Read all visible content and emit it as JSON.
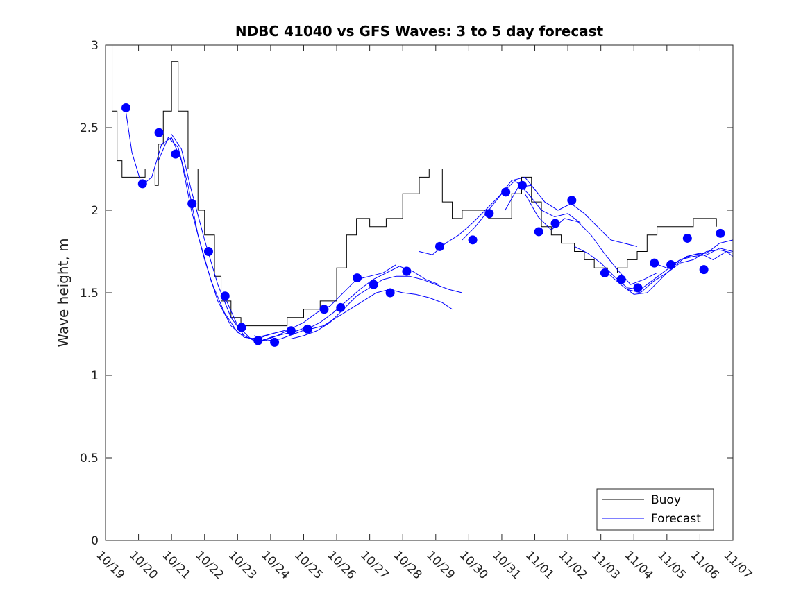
{
  "chart_data": {
    "type": "line",
    "title": "NDBC 41040 vs GFS Waves: 3 to 5 day forecast",
    "xlabel": "",
    "ylabel": "Wave height, m",
    "ylim": [
      0,
      3
    ],
    "xlim": [
      0,
      19
    ],
    "yticks": [
      0,
      0.5,
      1,
      1.5,
      2,
      2.5,
      3
    ],
    "ytick_labels": [
      "0",
      "0.5",
      "1",
      "1.5",
      "2",
      "2.5",
      "3"
    ],
    "xtick_labels": [
      "10/19",
      "10/20",
      "10/21",
      "10/22",
      "10/23",
      "10/24",
      "10/25",
      "10/26",
      "10/27",
      "10/28",
      "10/29",
      "10/30",
      "10/31",
      "11/01",
      "11/02",
      "11/03",
      "11/04",
      "11/05",
      "11/06",
      "11/07"
    ],
    "x_units": "days since 10/19 00:00",
    "legend": {
      "location": "bottom-right",
      "entries": [
        "Buoy",
        "Forecast"
      ]
    },
    "colors": {
      "buoy": "#000000",
      "forecast": "#0000ff",
      "marker": "#0000ff"
    },
    "series": [
      {
        "name": "Buoy",
        "x": [
          0.15,
          0.2,
          0.35,
          0.5,
          0.8,
          1.2,
          1.5,
          1.6,
          1.75,
          2.0,
          2.2,
          2.5,
          2.8,
          3.0,
          3.3,
          3.5,
          3.8,
          4.1,
          4.5,
          5.0,
          5.5,
          6.0,
          6.5,
          7.0,
          7.3,
          7.6,
          8.0,
          8.5,
          9.0,
          9.5,
          9.8,
          10.2,
          10.5,
          10.8,
          11.2,
          11.6,
          12.0,
          12.3,
          12.6,
          12.9,
          13.2,
          13.5,
          13.8,
          14.2,
          14.5,
          14.8,
          15.2,
          15.5,
          15.8,
          16.1,
          16.4,
          16.7,
          17.0,
          17.4,
          17.8,
          18.2,
          18.5
        ],
        "y": [
          3.0,
          2.6,
          2.3,
          2.2,
          2.2,
          2.25,
          2.15,
          2.4,
          2.6,
          2.9,
          2.6,
          2.25,
          2.0,
          1.85,
          1.6,
          1.45,
          1.35,
          1.3,
          1.3,
          1.3,
          1.35,
          1.4,
          1.45,
          1.65,
          1.85,
          1.95,
          1.9,
          1.95,
          2.1,
          2.2,
          2.25,
          2.05,
          1.95,
          2.0,
          2.0,
          1.95,
          1.95,
          2.1,
          2.2,
          2.05,
          1.9,
          1.85,
          1.8,
          1.75,
          1.7,
          1.65,
          1.62,
          1.65,
          1.7,
          1.75,
          1.85,
          1.9,
          1.9,
          1.9,
          1.95,
          1.95,
          1.9
        ]
      },
      {
        "name": "Forecast",
        "segments": [
          {
            "x": [
              0.6,
              0.8,
              1.1,
              1.4
            ],
            "y": [
              2.62,
              2.35,
              2.15,
              2.2
            ]
          },
          {
            "x": [
              1.4,
              1.7,
              2.0,
              2.3,
              2.6,
              3.0,
              3.4,
              3.8,
              4.2,
              4.6,
              5.0,
              5.4
            ],
            "y": [
              2.2,
              2.4,
              2.44,
              2.3,
              2.0,
              1.7,
              1.45,
              1.3,
              1.23,
              1.22,
              1.25,
              1.27
            ]
          },
          {
            "x": [
              1.6,
              1.9,
              2.2,
              2.5,
              2.8,
              3.2,
              3.6,
              4.0,
              4.4,
              4.8,
              5.2,
              5.6
            ],
            "y": [
              2.3,
              2.44,
              2.38,
              2.15,
              1.85,
              1.57,
              1.38,
              1.26,
              1.22,
              1.24,
              1.26,
              1.28
            ]
          },
          {
            "x": [
              2.0,
              2.3,
              2.6,
              3.0,
              3.4,
              3.8,
              4.2,
              4.6,
              5.0,
              5.4,
              5.8,
              6.2
            ],
            "y": [
              2.46,
              2.37,
              2.12,
              1.82,
              1.55,
              1.35,
              1.24,
              1.2,
              1.23,
              1.25,
              1.27,
              1.3
            ]
          },
          {
            "x": [
              3.6,
              4.0,
              4.4,
              4.8,
              5.2,
              5.6,
              6.0,
              6.4,
              6.8,
              7.2,
              7.6,
              8.0,
              8.4,
              8.8
            ],
            "y": [
              1.48,
              1.3,
              1.22,
              1.21,
              1.24,
              1.28,
              1.32,
              1.38,
              1.42,
              1.5,
              1.58,
              1.6,
              1.62,
              1.67
            ]
          },
          {
            "x": [
              4.5,
              4.9,
              5.3,
              5.7,
              6.1,
              6.5,
              6.9,
              7.3,
              7.7,
              8.1,
              8.5,
              8.9,
              9.3,
              9.7,
              10.1
            ],
            "y": [
              1.24,
              1.21,
              1.22,
              1.25,
              1.28,
              1.32,
              1.38,
              1.45,
              1.52,
              1.58,
              1.62,
              1.66,
              1.63,
              1.58,
              1.55
            ]
          },
          {
            "x": [
              5.6,
              6.0,
              6.4,
              6.8,
              7.2,
              7.6,
              8.0,
              8.4,
              8.8,
              9.2,
              9.6,
              10.0,
              10.4,
              10.8
            ],
            "y": [
              1.22,
              1.24,
              1.27,
              1.32,
              1.4,
              1.48,
              1.53,
              1.58,
              1.6,
              1.6,
              1.58,
              1.55,
              1.52,
              1.5
            ]
          },
          {
            "x": [
              6.2,
              6.6,
              7.0,
              7.4,
              7.8,
              8.2,
              8.6,
              9.0,
              9.4,
              9.8,
              10.2,
              10.5
            ],
            "y": [
              1.28,
              1.3,
              1.35,
              1.4,
              1.45,
              1.5,
              1.52,
              1.5,
              1.49,
              1.47,
              1.44,
              1.4
            ]
          },
          {
            "x": [
              9.5,
              9.9,
              10.3,
              10.7,
              11.1,
              11.5,
              11.9,
              12.3,
              12.7,
              13.1
            ],
            "y": [
              1.75,
              1.73,
              1.8,
              1.85,
              1.92,
              2.0,
              2.08,
              2.18,
              2.2,
              2.1
            ]
          },
          {
            "x": [
              10.8,
              11.2,
              11.6,
              12.0,
              12.4,
              12.8,
              13.2,
              13.6,
              14.0,
              14.4
            ],
            "y": [
              1.82,
              1.9,
              2.0,
              2.1,
              2.18,
              2.1,
              2.0,
              1.96,
              1.98,
              1.92
            ]
          },
          {
            "x": [
              12.1,
              12.5,
              12.9,
              13.3,
              13.7,
              14.1,
              14.5,
              14.9,
              15.3,
              15.7,
              16.1
            ],
            "y": [
              2.0,
              2.14,
              2.15,
              2.05,
              2.0,
              2.04,
              1.98,
              1.9,
              1.82,
              1.8,
              1.78
            ]
          },
          {
            "x": [
              12.7,
              13.1,
              13.5,
              13.9,
              14.3,
              14.7,
              15.1,
              15.5,
              15.9,
              16.3,
              16.7
            ],
            "y": [
              2.1,
              1.96,
              1.88,
              1.95,
              1.93,
              1.85,
              1.74,
              1.64,
              1.55,
              1.58,
              1.62
            ]
          },
          {
            "x": [
              14.2,
              14.6,
              15.0,
              15.4,
              15.8,
              16.2,
              16.6,
              17.0,
              17.4,
              17.8,
              18.2,
              18.6,
              19.0
            ],
            "y": [
              1.78,
              1.74,
              1.68,
              1.6,
              1.53,
              1.52,
              1.58,
              1.64,
              1.7,
              1.72,
              1.73,
              1.77,
              1.75
            ]
          },
          {
            "x": [
              15.2,
              15.6,
              16.0,
              16.4,
              16.8,
              17.2,
              17.6,
              18.0,
              18.4,
              18.8,
              19.0
            ],
            "y": [
              1.62,
              1.55,
              1.49,
              1.5,
              1.58,
              1.66,
              1.72,
              1.74,
              1.7,
              1.75,
              1.72
            ]
          },
          {
            "x": [
              15.8,
              16.2,
              16.6,
              17.0,
              17.4,
              17.8,
              18.2,
              18.6,
              19.0
            ],
            "y": [
              1.52,
              1.5,
              1.57,
              1.62,
              1.68,
              1.7,
              1.75,
              1.76,
              1.74
            ]
          },
          {
            "x": [
              16.6,
              17.0,
              17.4,
              17.8,
              18.2,
              18.6,
              19.0
            ],
            "y": [
              1.68,
              1.65,
              1.7,
              1.73,
              1.74,
              1.8,
              1.82
            ]
          }
        ]
      },
      {
        "name": "Forecast markers",
        "x": [
          0.62,
          1.12,
          1.62,
          2.12,
          2.62,
          3.12,
          3.62,
          4.12,
          4.62,
          5.12,
          5.62,
          6.12,
          6.62,
          7.12,
          7.62,
          8.12,
          8.62,
          9.12,
          10.12,
          11.12,
          11.62,
          12.12,
          12.62,
          13.12,
          13.62,
          14.12,
          15.12,
          15.62,
          16.12,
          16.62,
          17.12,
          17.62,
          18.12,
          18.62
        ],
        "y": [
          2.62,
          2.16,
          2.47,
          2.34,
          2.04,
          1.75,
          1.48,
          1.29,
          1.21,
          1.2,
          1.27,
          1.28,
          1.4,
          1.41,
          1.59,
          1.55,
          1.5,
          1.63,
          1.78,
          1.82,
          1.98,
          2.11,
          2.15,
          1.87,
          1.92,
          2.06,
          1.62,
          1.58,
          1.53,
          1.68,
          1.67,
          1.83,
          1.64,
          1.86
        ]
      }
    ]
  }
}
